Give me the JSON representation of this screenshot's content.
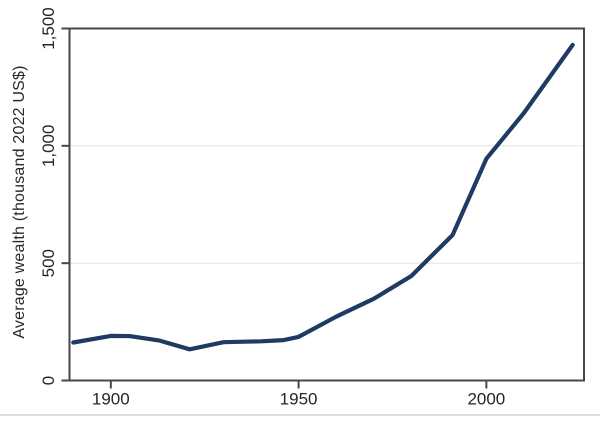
{
  "chart_data": {
    "type": "line",
    "title": "",
    "xlabel": "",
    "ylabel": "Average wealth (thousand 2022 US$)",
    "xlim": [
      1889,
      2026
    ],
    "ylim": [
      0,
      1500
    ],
    "x_ticks": [
      1900,
      1950,
      2000
    ],
    "x_tick_labels": [
      "1900",
      "1950",
      "2000"
    ],
    "y_ticks": [
      0,
      500,
      1000,
      1500
    ],
    "y_tick_labels": [
      "0",
      "500",
      "1,000",
      "1,500"
    ],
    "grid": "horizontal",
    "legend": "none",
    "series": [
      {
        "name": "average-wealth",
        "points": [
          [
            1890,
            162
          ],
          [
            1900,
            190
          ],
          [
            1905,
            189
          ],
          [
            1913,
            170
          ],
          [
            1921,
            133
          ],
          [
            1930,
            163
          ],
          [
            1940,
            167
          ],
          [
            1946,
            172
          ],
          [
            1950,
            186
          ],
          [
            1960,
            272
          ],
          [
            1970,
            348
          ],
          [
            1980,
            445
          ],
          [
            1991,
            620
          ],
          [
            2000,
            945
          ],
          [
            2010,
            1140
          ],
          [
            2023,
            1430
          ]
        ]
      }
    ]
  },
  "colors": {
    "line": "#1f3a63",
    "frame": "#474747",
    "grid": "#e5e5e5",
    "tick_text": "#262626",
    "divider": "#d9dee4",
    "background": "#ffffff"
  },
  "layout_values": {
    "tick_font_px": 17
  }
}
